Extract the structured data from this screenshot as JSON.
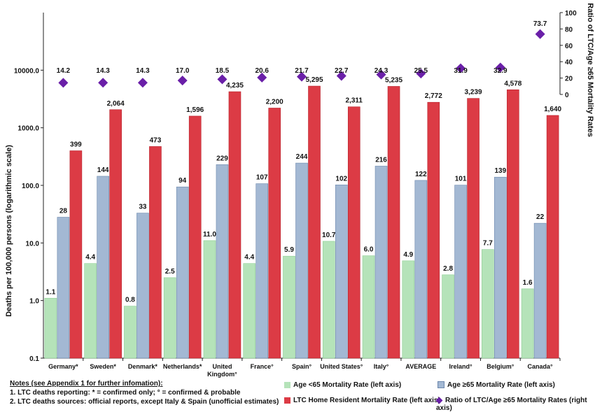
{
  "chart_data": {
    "type": "bar",
    "categories": [
      "Germany*",
      "Sweden*",
      "Denmark*",
      "Netherlands*",
      "United Kingdom°",
      "France°",
      "Spain°",
      "United States°",
      "Italy°",
      "AVERAGE",
      "Ireland°",
      "Belgium°",
      "Canada°"
    ],
    "ylabel": "Deaths per 100,000 persons (logarithmic scale)",
    "y2label": "Ratio of LTC/Age ≥65 Mortality Rates",
    "yscale": "log",
    "ylim": [
      0.1,
      100000
    ],
    "yticks": [
      "0.1",
      "1.0",
      "10.0",
      "100.0",
      "1000.0",
      "10000.0"
    ],
    "y2lim": [
      0,
      100
    ],
    "y2ticks": [
      "0",
      "20",
      "40",
      "60",
      "80",
      "100"
    ],
    "series": [
      {
        "name": "Age <65 Mortality Rate (left axis)",
        "axis": "left",
        "color": "#b5e3b9",
        "values": [
          1.1,
          4.4,
          0.8,
          2.5,
          11.0,
          4.4,
          5.9,
          10.7,
          6.0,
          4.9,
          2.8,
          7.7,
          1.6
        ],
        "labels": [
          "1.1",
          "4.4",
          "0.8",
          "2.5",
          "11.0",
          "4.4",
          "5.9",
          "10.7",
          "6.0",
          "4.9",
          "2.8",
          "7.7",
          "1.6"
        ]
      },
      {
        "name": "Age ≥65 Mortality Rate (left axis)",
        "axis": "left",
        "color": "#a3b8d3",
        "values": [
          28,
          144,
          33,
          94,
          229,
          107,
          244,
          102,
          216,
          122,
          101,
          139,
          22
        ],
        "labels": [
          "28",
          "144",
          "33",
          "94",
          "229",
          "107",
          "244",
          "102",
          "216",
          "122",
          "101",
          "139",
          "22"
        ]
      },
      {
        "name": "LTC Home Resident Mortality Rate (left axis)",
        "axis": "left",
        "color": "#dc3b45",
        "values": [
          399,
          2064,
          473,
          1596,
          4235,
          2200,
          5295,
          2311,
          5235,
          2772,
          3239,
          4578,
          1640
        ],
        "labels": [
          "399",
          "2,064",
          "473",
          "1,596",
          "4,235",
          "2,200",
          "5,295",
          "2,311",
          "5,235",
          "2,772",
          "3,239",
          "4,578",
          "1,640"
        ]
      },
      {
        "name": "Ratio of LTC/Age ≥65 Mortality Rates (right axis)",
        "axis": "right",
        "color": "#6a1fa8",
        "marker": "diamond",
        "values": [
          14.2,
          14.3,
          14.3,
          17.0,
          18.5,
          20.6,
          21.7,
          22.7,
          24.3,
          25.5,
          31.9,
          32.9,
          73.7
        ],
        "labels": [
          "14.2",
          "14.3",
          "14.3",
          "17.0",
          "18.5",
          "20.6",
          "21.7",
          "22.7",
          "24.3",
          "25.5",
          "31.9",
          "32.9",
          "73.7"
        ]
      }
    ],
    "legend_position": "bottom-right",
    "grid": false
  },
  "notes": {
    "title": "Notes (see Appendix 1 for further infomation):",
    "line1": "1. LTC deaths reporting: * = confirmed only; ° = confirmed & probable",
    "line2": "2. LTC deaths sources: official reports, except Italy & Spain (unofficial estimates)"
  }
}
